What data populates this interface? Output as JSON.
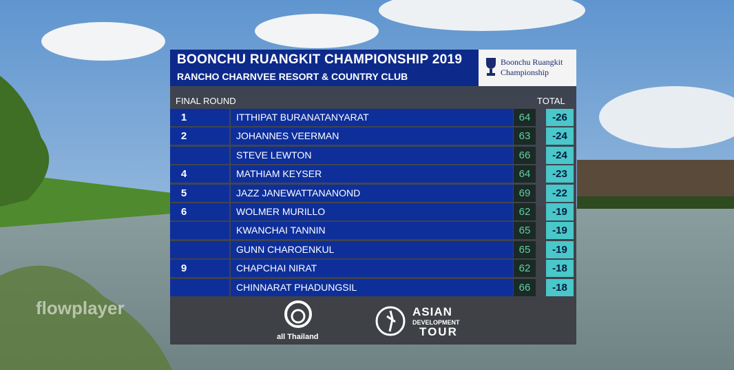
{
  "header": {
    "title": "BOONCHU RUANGKIT CHAMPIONSHIP 2019",
    "subtitle": "RANCHO CHARNVEE RESORT & COUNTRY CLUB",
    "logo_lines": [
      "Boonchu Ruangkit",
      "Championship"
    ]
  },
  "table": {
    "round_label": "FINAL ROUND",
    "total_label": "TOTAL",
    "rows": [
      {
        "pos": 1,
        "name": "ITTHIPAT BURANATANYARAT",
        "round": 64,
        "total": -26
      },
      {
        "pos": 2,
        "name": "JOHANNES VEERMAN",
        "round": 63,
        "total": -24
      },
      {
        "name": "STEVE LEWTON",
        "round": 66,
        "total": -24
      },
      {
        "pos": 4,
        "name": "MATHIAM KEYSER",
        "round": 64,
        "total": -23
      },
      {
        "pos": 5,
        "name": "JAZZ JANEWATTANANOND",
        "round": 69,
        "total": -22
      },
      {
        "pos": 6,
        "name": "WOLMER MURILLO",
        "round": 62,
        "total": -19
      },
      {
        "name": "KWANCHAI TANNIN",
        "round": 65,
        "total": -19
      },
      {
        "name": "GUNN CHAROENKUL",
        "round": 65,
        "total": -19
      },
      {
        "pos": 9,
        "name": "CHAPCHAI NIRAT",
        "round": 62,
        "total": -18
      },
      {
        "name": "CHINNARAT PHADUNGSIL",
        "round": 66,
        "total": -18
      }
    ]
  },
  "footer": {
    "sponsors": [
      "all Thailand",
      [
        "ASIAN",
        "DEVELOPMENT",
        "TOUR"
      ]
    ]
  },
  "watermark": "flowplayer"
}
